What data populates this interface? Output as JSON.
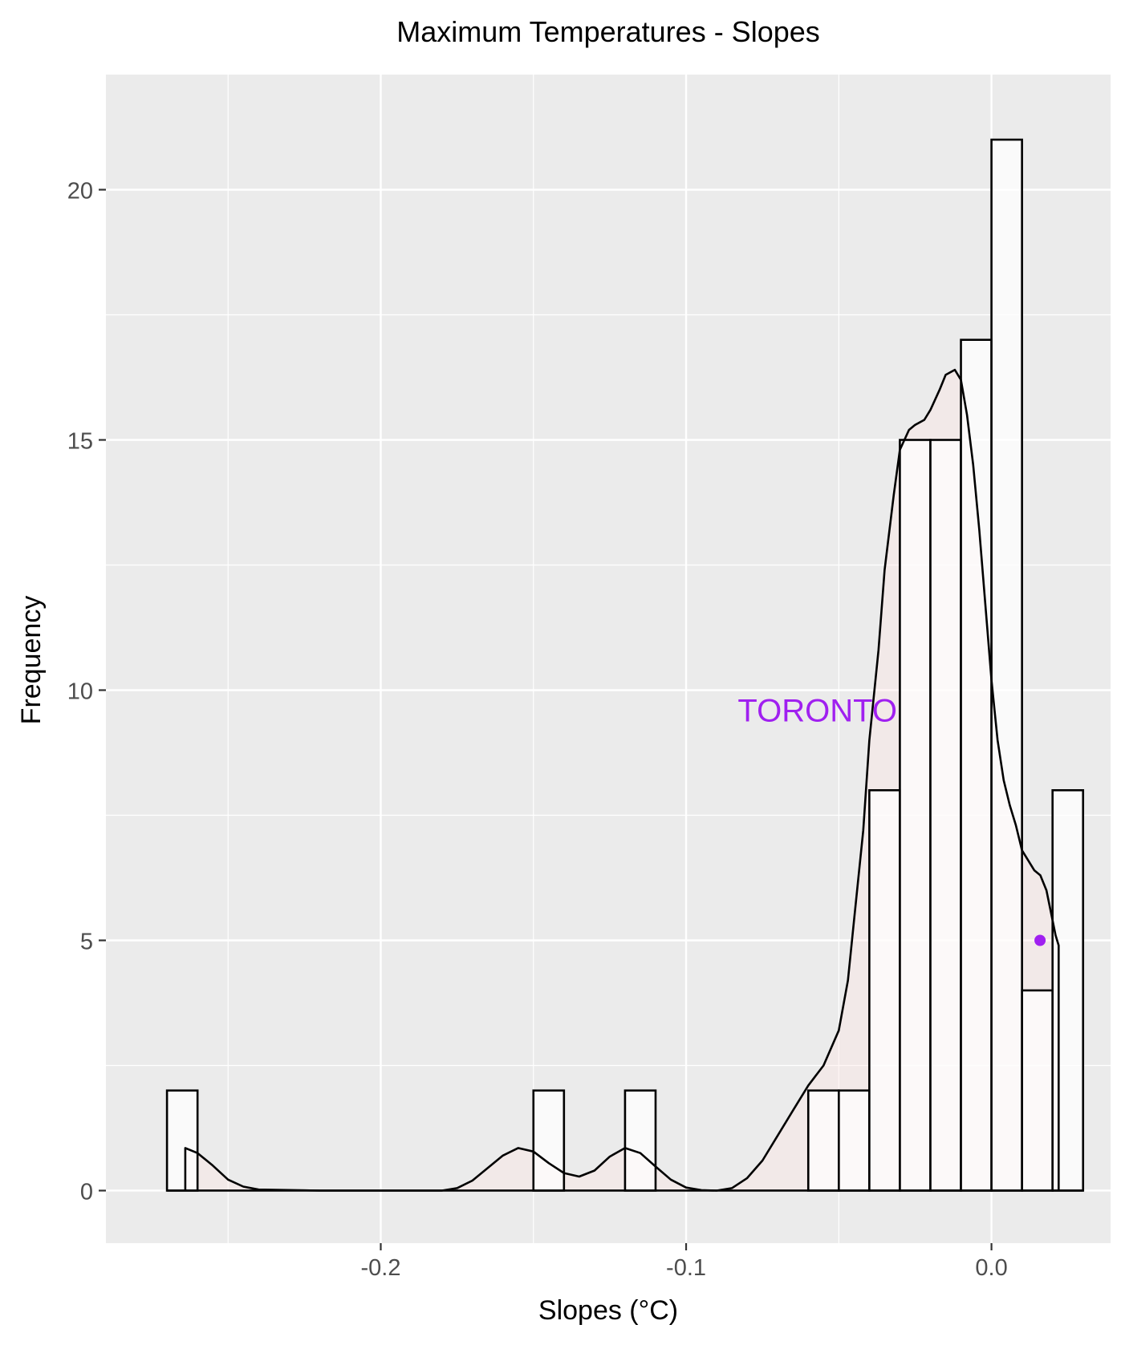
{
  "chart_data": {
    "type": "bar",
    "title": "Maximum Temperatures -  Slopes",
    "xlabel": "Slopes (°C)",
    "ylabel": "Frequency",
    "xlim": [
      -0.29,
      0.039
    ],
    "ylim": [
      -1.05,
      22.3
    ],
    "x_ticks": [
      -0.2,
      -0.1,
      0.0
    ],
    "x_tick_labels": [
      "-0.2",
      "-0.1",
      "0.0"
    ],
    "y_ticks": [
      0,
      5,
      10,
      15,
      20
    ],
    "y_tick_labels": [
      "0",
      "5",
      "10",
      "15",
      "20"
    ],
    "x_minor": [
      -0.25,
      -0.15,
      -0.05,
      0.05
    ],
    "y_minor": [
      2.5,
      7.5,
      12.5,
      17.5
    ],
    "grid": true,
    "bin_width": 0.01,
    "bins": [
      {
        "left": -0.27,
        "count": 2
      },
      {
        "left": -0.15,
        "count": 2
      },
      {
        "left": -0.12,
        "count": 2
      },
      {
        "left": -0.06,
        "count": 2
      },
      {
        "left": -0.05,
        "count": 2
      },
      {
        "left": -0.04,
        "count": 8
      },
      {
        "left": -0.03,
        "count": 15
      },
      {
        "left": -0.02,
        "count": 15
      },
      {
        "left": -0.01,
        "count": 17
      },
      {
        "left": 0.0,
        "count": 21
      },
      {
        "left": 0.01,
        "count": 4
      },
      {
        "left": 0.02,
        "count": 8
      }
    ],
    "density_curve": {
      "x": [
        -0.264,
        -0.26,
        -0.255,
        -0.25,
        -0.245,
        -0.24,
        -0.22,
        -0.2,
        -0.18,
        -0.175,
        -0.17,
        -0.165,
        -0.16,
        -0.155,
        -0.15,
        -0.145,
        -0.14,
        -0.135,
        -0.13,
        -0.125,
        -0.12,
        -0.115,
        -0.11,
        -0.105,
        -0.1,
        -0.095,
        -0.09,
        -0.085,
        -0.08,
        -0.075,
        -0.07,
        -0.065,
        -0.06,
        -0.055,
        -0.05,
        -0.047,
        -0.045,
        -0.042,
        -0.04,
        -0.037,
        -0.035,
        -0.032,
        -0.03,
        -0.027,
        -0.025,
        -0.022,
        -0.02,
        -0.017,
        -0.015,
        -0.012,
        -0.01,
        -0.008,
        -0.006,
        -0.004,
        -0.002,
        0.0,
        0.002,
        0.004,
        0.006,
        0.008,
        0.01,
        0.012,
        0.014,
        0.016,
        0.018,
        0.02,
        0.021,
        0.022
      ],
      "y": [
        0.85,
        0.75,
        0.5,
        0.22,
        0.08,
        0.02,
        0.0,
        0.0,
        0.0,
        0.05,
        0.2,
        0.45,
        0.7,
        0.85,
        0.78,
        0.55,
        0.35,
        0.28,
        0.4,
        0.68,
        0.85,
        0.75,
        0.48,
        0.22,
        0.06,
        0.01,
        0.0,
        0.05,
        0.25,
        0.6,
        1.1,
        1.6,
        2.1,
        2.5,
        3.2,
        4.2,
        5.4,
        7.2,
        9.0,
        10.8,
        12.4,
        13.9,
        14.8,
        15.2,
        15.3,
        15.4,
        15.6,
        16.0,
        16.3,
        16.4,
        16.2,
        15.5,
        14.5,
        13.2,
        11.7,
        10.2,
        9.0,
        8.2,
        7.7,
        7.3,
        6.8,
        6.6,
        6.4,
        6.3,
        6.0,
        5.4,
        5.1,
        4.9
      ]
    },
    "highlight": {
      "label": "TORONTO",
      "x": 0.0159,
      "y": 5,
      "label_x": -0.057,
      "label_y": 9.6,
      "color": "#a020f0"
    },
    "colors": {
      "panel": "#ebebeb",
      "grid": "#ffffff",
      "bar_fill": "#ffffff",
      "bar_stroke": "#000000",
      "density_fill": "#ffe4e1",
      "highlight": "#a020f0"
    }
  }
}
